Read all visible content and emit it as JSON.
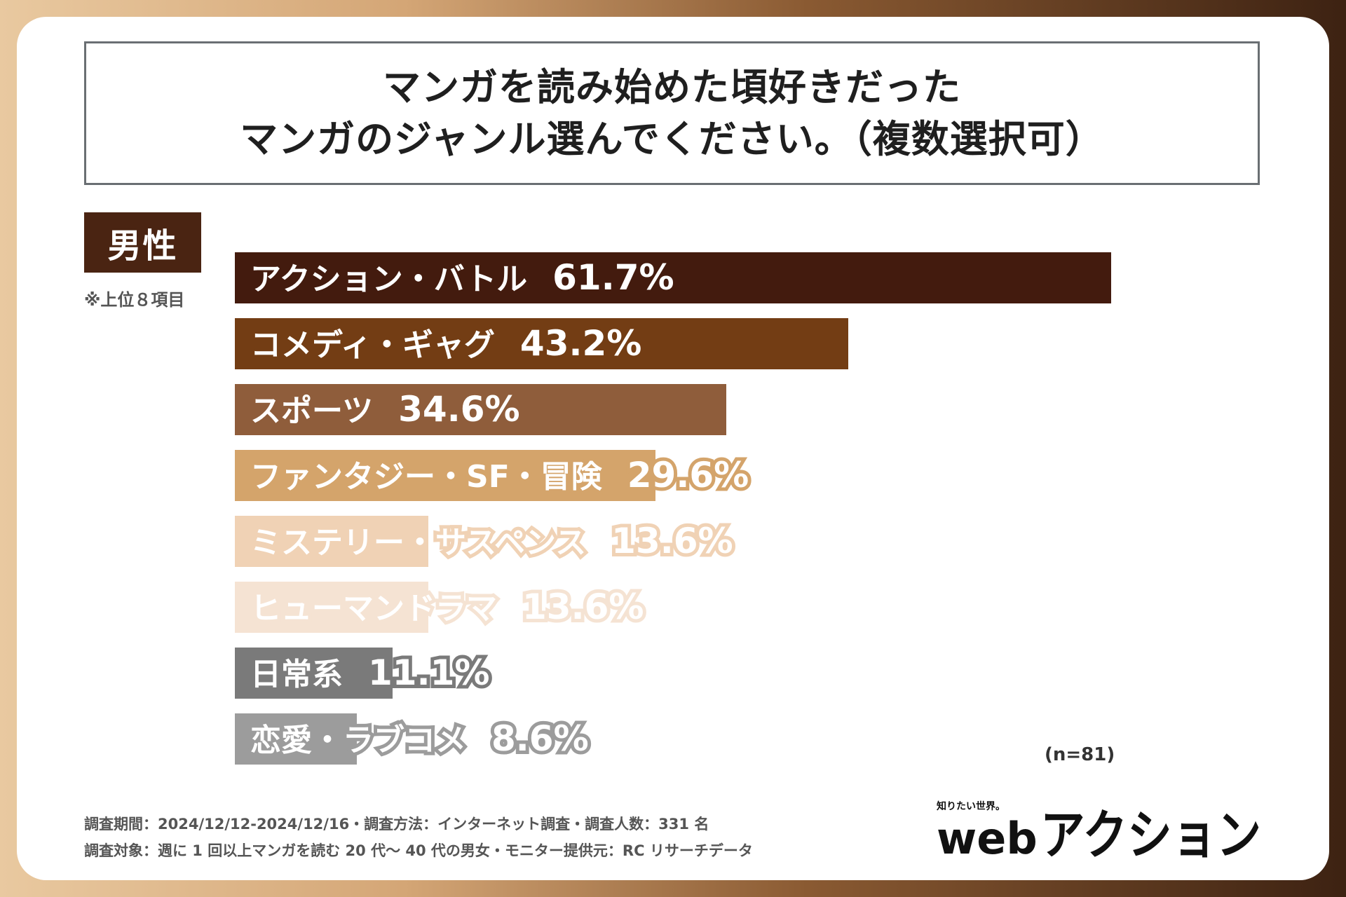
{
  "title": {
    "line1": "マンガを読み始めた頃好きだった",
    "line2": "マンガのジャンル選んでください。（複数選択可）"
  },
  "gender_label": "男性",
  "note": "※上位８項目",
  "sample_note": "(n=81)",
  "footer": {
    "line1": "調査期間：2024/12/12-2024/12/16・調査方法：インターネット調査・調査人数：331 名",
    "line2": "調査対象：週に 1 回以上マンガを読む 20 代～ 40 代の男女・モニター提供元：RC リサーチデータ"
  },
  "logo": {
    "tagline": "知りたい世界。",
    "text_web": "web",
    "text_main": "アクション"
  },
  "chart_data": {
    "type": "bar",
    "orientation": "horizontal",
    "unit": "%",
    "xlim": [
      0,
      100
    ],
    "categories": [
      "アクション・バトル",
      "コメディ・ギャグ",
      "スポーツ",
      "ファンタジー・SF・冒険",
      "ミステリー・サスペンス",
      "ヒューマンドラマ",
      "日常系",
      "恋愛・ラブコメ"
    ],
    "values": [
      61.7,
      43.2,
      34.6,
      29.6,
      13.6,
      13.6,
      11.1,
      8.6
    ],
    "labels": [
      "61.7%",
      "43.2%",
      "34.6%",
      "29.6%",
      "13.6%",
      "13.6%",
      "11.1%",
      "8.6%"
    ],
    "colors": [
      "#431b0e",
      "#733d14",
      "#8f5d3b",
      "#d4a46b",
      "#f0d2b5",
      "#f5e3d3",
      "#7a7a7a",
      "#9c9c9c"
    ],
    "text_colors": [
      "#ffffff",
      "#ffffff",
      "#ffffff",
      "#ffffff",
      "#ffffff",
      "#ffffff",
      "#ffffff",
      "#ffffff"
    ],
    "outline_colors": [
      "none",
      "none",
      "none",
      "#d4a46b",
      "#f0d2b5",
      "#f5e3d3",
      "#7a7a7a",
      "#9c9c9c"
    ]
  }
}
